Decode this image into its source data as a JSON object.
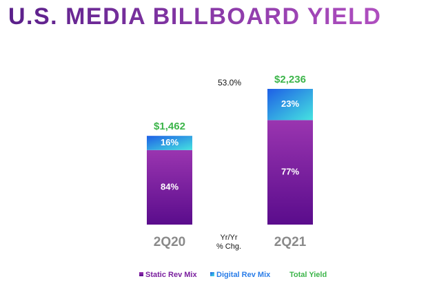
{
  "chart_data": {
    "type": "stacked-bar",
    "title": "U.S. MEDIA BILLBOARD YIELD",
    "categories": [
      "2Q20",
      "2Q21"
    ],
    "series": [
      {
        "name": "Static Rev Mix",
        "color": "#7a1f9e",
        "values": [
          84,
          77
        ],
        "value_labels": [
          "84%",
          "77%"
        ]
      },
      {
        "name": "Digital Rev Mix",
        "color": "#2a7de8",
        "values": [
          16,
          23
        ],
        "value_labels": [
          "16%",
          "23%"
        ]
      },
      {
        "name": "Total Yield",
        "color": "#3cb54a",
        "values": [
          1462,
          2236
        ],
        "value_labels": [
          "$1,462",
          "$2,236"
        ]
      }
    ],
    "annotations": {
      "change": "53.0%",
      "change_label": [
        "Yr/Yr",
        "% Chg."
      ]
    }
  }
}
